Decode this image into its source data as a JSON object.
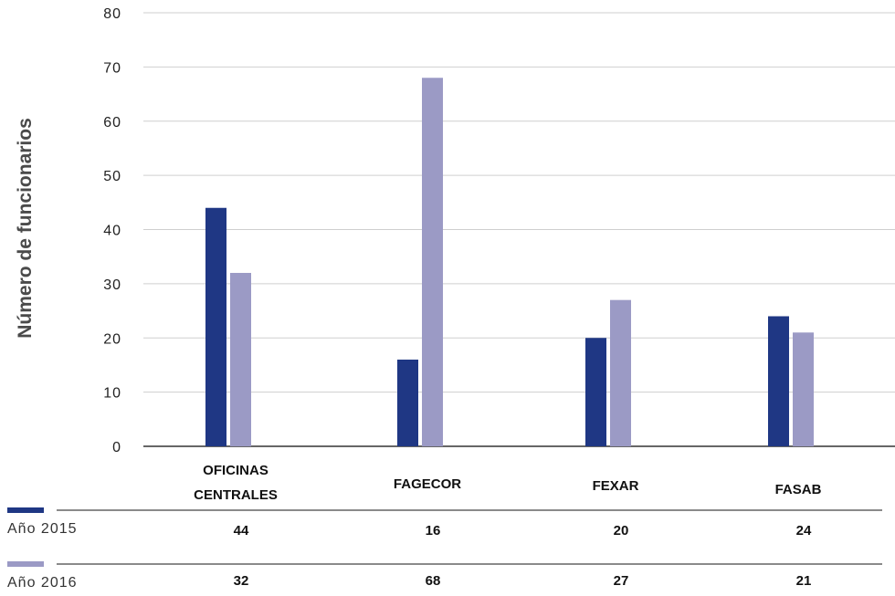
{
  "chart_data": {
    "type": "bar",
    "ylabel": "Número de funcionarios",
    "ylim": [
      0,
      80
    ],
    "yticks": [
      0,
      10,
      20,
      30,
      40,
      50,
      60,
      70,
      80
    ],
    "grid": true,
    "categories": [
      [
        "OFICINAS",
        "CENTRALES"
      ],
      [
        "FAGECOR"
      ],
      [
        "FEXAR"
      ],
      [
        "FASAB"
      ]
    ],
    "series": [
      {
        "name": "Año 2015",
        "color": "#1f3784",
        "values": [
          44,
          16,
          20,
          24
        ]
      },
      {
        "name": "Año 2016",
        "color": "#9b9ac5",
        "values": [
          32,
          68,
          27,
          21
        ]
      }
    ],
    "data_table": {
      "rows": [
        {
          "series": "Año 2015",
          "values": [
            "44",
            "16",
            "20",
            "24"
          ]
        },
        {
          "series": "Año 2016",
          "values": [
            "32",
            "68",
            "27",
            "21"
          ]
        }
      ]
    }
  }
}
